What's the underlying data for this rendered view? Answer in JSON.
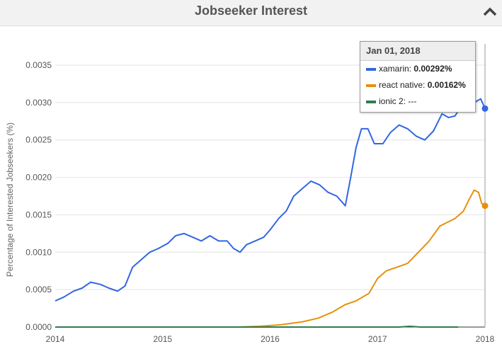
{
  "header": {
    "title": "Jobseeker Interest",
    "collapse_icon": "chevron-up-icon"
  },
  "chart_data": {
    "type": "line",
    "title": "Jobseeker Interest",
    "xlabel": "",
    "ylabel": "Percentage of Interested Jobseekers (%)",
    "xlim": [
      2014.0,
      2018.0
    ],
    "ylim": [
      0,
      0.0035
    ],
    "x_ticks": [
      "2014",
      "2015",
      "2016",
      "2017",
      "2018"
    ],
    "y_ticks": [
      "0.0000",
      "0.0005",
      "0.0010",
      "0.0015",
      "0.0020",
      "0.0025",
      "0.0030",
      "0.0035"
    ],
    "grid": true,
    "series": [
      {
        "name": "xamarin",
        "color": "#3366e0",
        "points": [
          [
            2014.0,
            0.00035
          ],
          [
            2014.08,
            0.0004
          ],
          [
            2014.17,
            0.00048
          ],
          [
            2014.25,
            0.00052
          ],
          [
            2014.33,
            0.0006
          ],
          [
            2014.42,
            0.00057
          ],
          [
            2014.5,
            0.00052
          ],
          [
            2014.58,
            0.00048
          ],
          [
            2014.65,
            0.00055
          ],
          [
            2014.72,
            0.0008
          ],
          [
            2014.8,
            0.0009
          ],
          [
            2014.88,
            0.001
          ],
          [
            2014.96,
            0.00105
          ],
          [
            2015.05,
            0.00112
          ],
          [
            2015.12,
            0.00122
          ],
          [
            2015.2,
            0.00125
          ],
          [
            2015.28,
            0.0012
          ],
          [
            2015.36,
            0.00115
          ],
          [
            2015.44,
            0.00122
          ],
          [
            2015.52,
            0.00115
          ],
          [
            2015.6,
            0.00115
          ],
          [
            2015.66,
            0.00105
          ],
          [
            2015.72,
            0.001
          ],
          [
            2015.78,
            0.0011
          ],
          [
            2015.86,
            0.00115
          ],
          [
            2015.94,
            0.0012
          ],
          [
            2016.0,
            0.0013
          ],
          [
            2016.08,
            0.00145
          ],
          [
            2016.15,
            0.00155
          ],
          [
            2016.22,
            0.00175
          ],
          [
            2016.3,
            0.00185
          ],
          [
            2016.38,
            0.00195
          ],
          [
            2016.46,
            0.0019
          ],
          [
            2016.54,
            0.0018
          ],
          [
            2016.62,
            0.00175
          ],
          [
            2016.7,
            0.00162
          ],
          [
            2016.75,
            0.002
          ],
          [
            2016.8,
            0.0024
          ],
          [
            2016.85,
            0.00265
          ],
          [
            2016.91,
            0.00265
          ],
          [
            2016.97,
            0.00245
          ],
          [
            2017.05,
            0.00245
          ],
          [
            2017.12,
            0.0026
          ],
          [
            2017.2,
            0.0027
          ],
          [
            2017.28,
            0.00265
          ],
          [
            2017.36,
            0.00255
          ],
          [
            2017.44,
            0.0025
          ],
          [
            2017.52,
            0.00262
          ],
          [
            2017.6,
            0.00285
          ],
          [
            2017.66,
            0.0028
          ],
          [
            2017.72,
            0.00282
          ],
          [
            2017.78,
            0.00295
          ],
          [
            2017.84,
            0.00298
          ],
          [
            2017.9,
            0.003
          ],
          [
            2017.96,
            0.00305
          ],
          [
            2018.0,
            0.00292
          ]
        ]
      },
      {
        "name": "react native",
        "color": "#e8900c",
        "points": [
          [
            2015.7,
            0.0
          ],
          [
            2015.9,
            1e-05
          ],
          [
            2016.1,
            3e-05
          ],
          [
            2016.3,
            7e-05
          ],
          [
            2016.45,
            0.00012
          ],
          [
            2016.58,
            0.0002
          ],
          [
            2016.7,
            0.0003
          ],
          [
            2016.8,
            0.00035
          ],
          [
            2016.92,
            0.00045
          ],
          [
            2017.0,
            0.00065
          ],
          [
            2017.08,
            0.00075
          ],
          [
            2017.18,
            0.0008
          ],
          [
            2017.28,
            0.00085
          ],
          [
            2017.38,
            0.001
          ],
          [
            2017.48,
            0.00115
          ],
          [
            2017.58,
            0.00135
          ],
          [
            2017.65,
            0.0014
          ],
          [
            2017.72,
            0.00145
          ],
          [
            2017.8,
            0.00155
          ],
          [
            2017.85,
            0.0017
          ],
          [
            2017.9,
            0.00183
          ],
          [
            2017.94,
            0.0018
          ],
          [
            2017.97,
            0.00165
          ],
          [
            2018.0,
            0.00162
          ]
        ]
      },
      {
        "name": "ionic 2",
        "color": "#2e7d4f",
        "points": [
          [
            2014.0,
            0.0
          ],
          [
            2017.2,
            0.0
          ],
          [
            2017.3,
            1e-05
          ],
          [
            2017.4,
            0.0
          ],
          [
            2017.75,
            0.0
          ]
        ]
      }
    ],
    "markers": [
      {
        "series": "xamarin",
        "x": 2018.0,
        "y": 0.00292
      },
      {
        "series": "react native",
        "x": 2018.0,
        "y": 0.00162
      }
    ]
  },
  "tooltip": {
    "date": "Jan 01, 2018",
    "rows": [
      {
        "label": "xamarin:",
        "value": "0.00292%",
        "color": "#3366e0"
      },
      {
        "label": "react native:",
        "value": "0.00162%",
        "color": "#e8900c"
      },
      {
        "label": "ionic 2:",
        "value": "---",
        "color": "#2e7d4f"
      }
    ]
  }
}
